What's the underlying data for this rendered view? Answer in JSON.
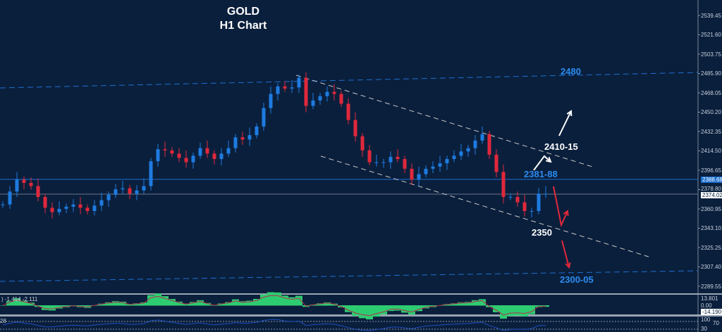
{
  "title": {
    "line1": "GOLD",
    "line2": "H1 Chart"
  },
  "colors": {
    "background": "#0a1f3c",
    "bull": "#1e7be0",
    "bear": "#e0283c",
    "level": "#1e6fd0",
    "channel": "#c8c8c8",
    "histogram": "#2ecc71",
    "signal": "#b0304a",
    "rsi": "#2050c0"
  },
  "chart_data": {
    "type": "candlestick",
    "symbol": "GOLD",
    "timeframe": "H1",
    "ylim": [
      2280,
      2550
    ],
    "y_ticks": [
      "2539.45",
      "2521.60",
      "2503.75",
      "2485.90",
      "2468.05",
      "2450.20",
      "2432.35",
      "2414.50",
      "2396.65",
      "2378.80",
      "2360.95",
      "2343.10",
      "2325.25",
      "2307.40",
      "2289.55"
    ],
    "closes": [
      2365,
      2377,
      2388,
      2385,
      2382,
      2372,
      2362,
      2358,
      2361,
      2363,
      2365,
      2362,
      2359,
      2364,
      2369,
      2374,
      2379,
      2380,
      2375,
      2378,
      2382,
      2405,
      2416,
      2415,
      2412,
      2408,
      2404,
      2410,
      2417,
      2412,
      2407,
      2412,
      2417,
      2427,
      2425,
      2429,
      2437,
      2454,
      2467,
      2474,
      2472,
      2473,
      2482,
      2456,
      2461,
      2465,
      2469,
      2467,
      2458,
      2443,
      2428,
      2415,
      2404,
      2404,
      2404,
      2409,
      2407,
      2398,
      2388,
      2393,
      2398,
      2400,
      2403,
      2407,
      2410,
      2414,
      2417,
      2424,
      2430,
      2411,
      2395,
      2372,
      2372,
      2367,
      2359,
      2359,
      2375,
      2375
    ],
    "price_tags": [
      {
        "value": "2388.68",
        "style": "blue"
      },
      {
        "value": "2374.02",
        "style": "white"
      }
    ],
    "annotations": [
      {
        "text": "2480",
        "color": "blue"
      },
      {
        "text": "2410-15",
        "color": "white"
      },
      {
        "text": "2381-88",
        "color": "blue"
      },
      {
        "text": "2350",
        "color": "white"
      },
      {
        "text": "2300-05",
        "color": "blue"
      }
    ],
    "macd": {
      "label": ") -1.414 -2.111",
      "ticks": [
        "13.801",
        "0.00",
        "-14.190"
      ]
    },
    "rsi": {
      "label": "28",
      "ticks": [
        "100",
        "70",
        "30"
      ]
    }
  }
}
